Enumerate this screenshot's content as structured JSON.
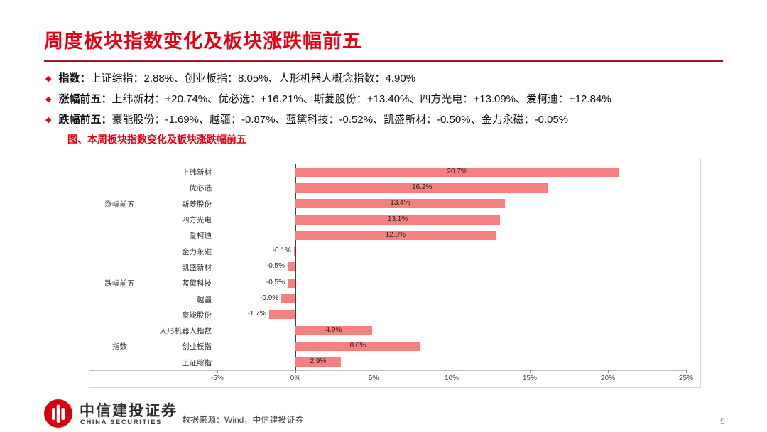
{
  "slide": {
    "title": "周度板块指数变化及板块涨跌幅前五",
    "bullets": [
      {
        "marker": "◆",
        "label": "指数：",
        "text": "上证综指：2.88%、创业板指：8.05%、人形机器人概念指数：4.90%"
      },
      {
        "marker": "◆",
        "label": "涨幅前五：",
        "text": "上纬新材：+20.74%、优必选：+16.21%、斯菱股份：+13.40%、四方光电：+13.09%、爱柯迪：+12.84%"
      },
      {
        "marker": "◆",
        "label": "跌幅前五：",
        "text": "豪能股份：-1.69%、越疆：-0.87%、蓝黛科技：-0.52%、凯盛新材：-0.50%、金力永磁：-0.05%"
      }
    ],
    "figure_title": "图、本周板块指数变化及板块涨跌幅前五"
  },
  "footer": {
    "company_cn": "中信建投证券",
    "company_en": "CHINA SECURITIES",
    "source": "数据来源：Wind，中信建投证券",
    "page_number": "5"
  },
  "chart_data": {
    "type": "bar",
    "orientation": "horizontal",
    "title": "图、本周板块指数变化及板块涨跌幅前五",
    "xlim": [
      -5,
      25
    ],
    "bar_color": "#f77f7f",
    "x_ticks": [
      {
        "value": -5,
        "label": "-5%"
      },
      {
        "value": 0,
        "label": "0%"
      },
      {
        "value": 5,
        "label": "5%"
      },
      {
        "value": 10,
        "label": "10%"
      },
      {
        "value": 15,
        "label": "15%"
      },
      {
        "value": 20,
        "label": "20%"
      },
      {
        "value": 25,
        "label": "25%"
      }
    ],
    "groups": [
      {
        "name": "涨幅前五",
        "items": [
          {
            "label": "上纬新材",
            "value": 20.7,
            "display": "20.7%"
          },
          {
            "label": "优必选",
            "value": 16.2,
            "display": "16.2%"
          },
          {
            "label": "斯菱股份",
            "value": 13.4,
            "display": "13.4%"
          },
          {
            "label": "四方光电",
            "value": 13.1,
            "display": "13.1%"
          },
          {
            "label": "爱柯迪",
            "value": 12.8,
            "display": "12.8%"
          }
        ]
      },
      {
        "name": "跌幅前五",
        "items": [
          {
            "label": "金力永磁",
            "value": -0.1,
            "display": "-0.1%"
          },
          {
            "label": "凯盛新材",
            "value": -0.5,
            "display": "-0.5%"
          },
          {
            "label": "蓝黛科技",
            "value": -0.5,
            "display": "-0.5%"
          },
          {
            "label": "越疆",
            "value": -0.9,
            "display": "-0.9%"
          },
          {
            "label": "豪能股份",
            "value": -1.7,
            "display": "-1.7%"
          }
        ]
      },
      {
        "name": "指数",
        "items": [
          {
            "label": "人形机器人指数",
            "value": 4.9,
            "display": "4.9%"
          },
          {
            "label": "创业板指",
            "value": 8.0,
            "display": "8.0%"
          },
          {
            "label": "上证综指",
            "value": 2.9,
            "display": "2.9%"
          }
        ]
      }
    ]
  }
}
